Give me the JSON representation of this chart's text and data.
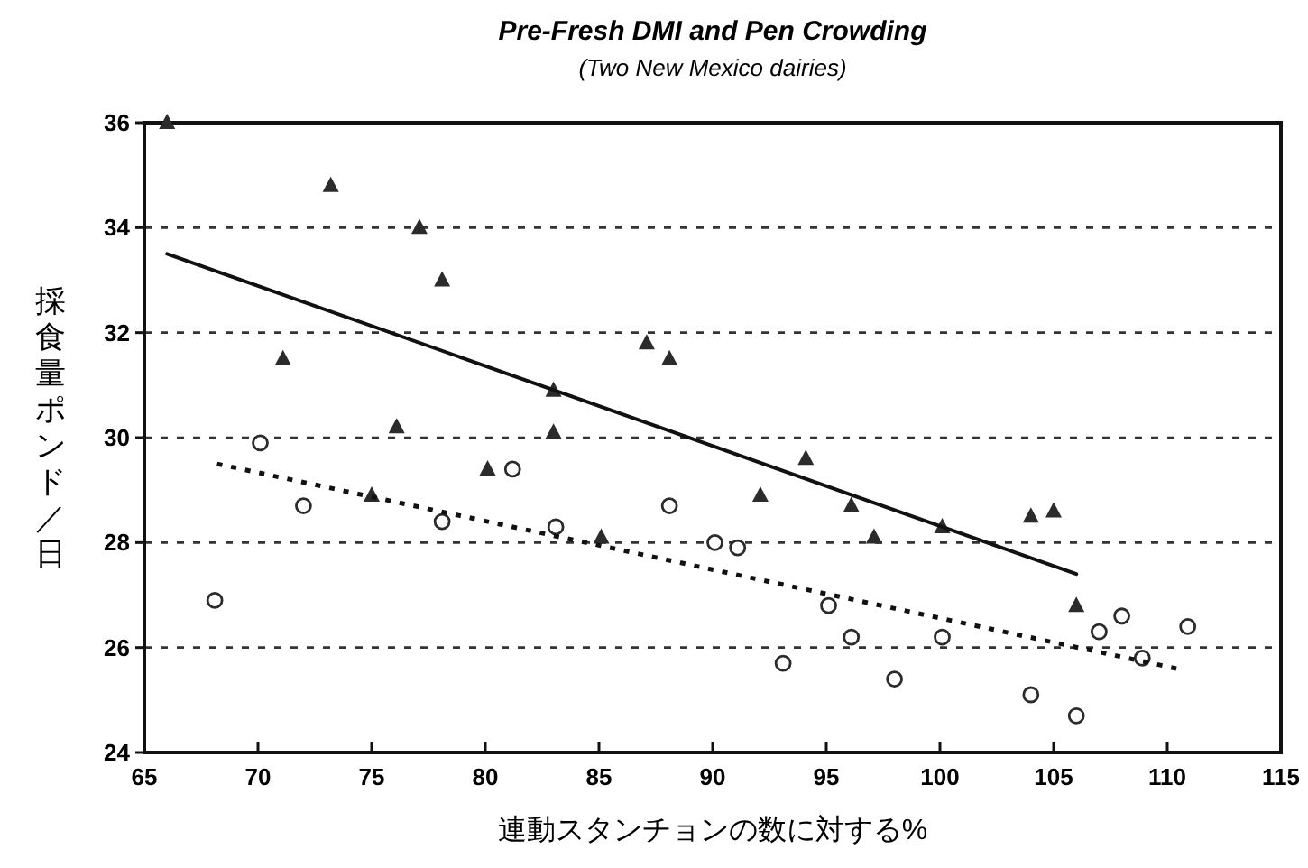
{
  "chart_data": {
    "type": "scatter",
    "title": "Pre-Fresh DMI and Pen Crowding",
    "subtitle": "(Two New Mexico dairies)",
    "xlabel": "連動スタンチョンの数に対する%",
    "ylabel": "採食量ポンド／日",
    "xlim": [
      65,
      115
    ],
    "xticks": [
      65,
      70,
      75,
      80,
      85,
      90,
      95,
      100,
      105,
      110,
      115
    ],
    "ylim": [
      24,
      36
    ],
    "yticks": [
      24,
      26,
      28,
      30,
      32,
      34,
      36
    ],
    "grid": "y",
    "legend": false,
    "series": [
      {
        "type": "scatter",
        "marker": "triangle",
        "color": "#2b2b2b",
        "x": [
          66.0,
          73.2,
          77.1,
          78.1,
          71.1,
          87.1,
          88.1,
          83.0,
          76.1,
          83.0,
          80.1,
          75.0,
          85.1,
          94.1,
          92.1,
          96.1,
          97.1,
          100.1,
          104.0,
          105.0,
          106.0
        ],
        "values": [
          36.0,
          34.8,
          34.0,
          33.0,
          31.5,
          31.8,
          31.5,
          30.9,
          30.2,
          30.1,
          29.4,
          28.9,
          28.1,
          29.6,
          28.9,
          28.7,
          28.1,
          28.3,
          28.5,
          28.6,
          26.8
        ]
      },
      {
        "type": "scatter",
        "marker": "circle",
        "color": "#2b2b2b",
        "x": [
          68.1,
          70.1,
          72.0,
          78.1,
          81.2,
          83.1,
          88.1,
          90.1,
          91.1,
          95.1,
          96.1,
          93.1,
          98.0,
          100.1,
          104.0,
          106.0,
          107.0,
          108.0,
          108.9,
          110.9
        ],
        "values": [
          26.9,
          29.9,
          28.7,
          28.4,
          29.4,
          28.3,
          28.7,
          28.0,
          27.9,
          26.8,
          26.2,
          25.7,
          25.4,
          26.2,
          25.1,
          24.7,
          26.3,
          26.6,
          25.8,
          26.4
        ]
      },
      {
        "type": "line",
        "line_style": "solid",
        "marker": "none",
        "color": "#111111",
        "x": [
          66.0,
          106.0
        ],
        "values": [
          33.5,
          27.4
        ]
      },
      {
        "type": "line",
        "line_style": "dotted",
        "marker": "none",
        "color": "#111111",
        "x": [
          68.2,
          110.4
        ],
        "values": [
          29.5,
          25.6
        ]
      }
    ]
  }
}
